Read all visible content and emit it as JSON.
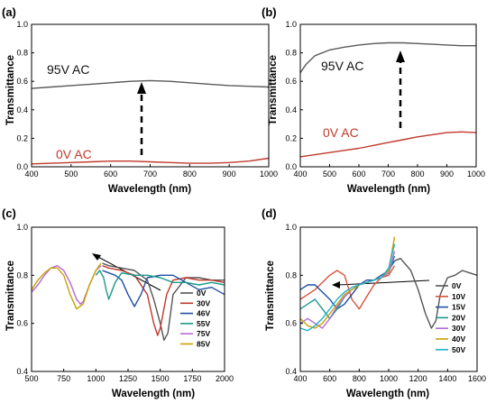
{
  "chart_data": [
    {
      "panel": "(a)",
      "type": "line",
      "xlabel": "Wavelength (nm)",
      "ylabel": "Transmittance",
      "xlim": [
        400,
        1000
      ],
      "ylim": [
        0,
        1.0
      ],
      "xticks": [
        "400",
        "500",
        "600",
        "700",
        "800",
        "900",
        "1000"
      ],
      "yticks": [
        "0.0",
        "0.2",
        "0.4",
        "0.6",
        "0.8",
        "1.0"
      ],
      "grid": false,
      "series": [
        {
          "name": "95V AC",
          "color": "#5a5a5a",
          "x": [
            400,
            450,
            500,
            550,
            600,
            650,
            700,
            750,
            800,
            850,
            900,
            950,
            1000
          ],
          "y": [
            0.55,
            0.56,
            0.57,
            0.58,
            0.59,
            0.6,
            0.605,
            0.6,
            0.59,
            0.58,
            0.57,
            0.565,
            0.56
          ]
        },
        {
          "name": "0V AC",
          "color": "#c0392b",
          "x": [
            400,
            450,
            500,
            550,
            600,
            650,
            700,
            750,
            800,
            850,
            900,
            950,
            1000
          ],
          "y": [
            0.02,
            0.025,
            0.03,
            0.035,
            0.04,
            0.04,
            0.035,
            0.03,
            0.025,
            0.025,
            0.03,
            0.04,
            0.06
          ]
        }
      ],
      "annotations": [
        "95V AC",
        "0V AC"
      ]
    },
    {
      "panel": "(b)",
      "type": "line",
      "xlabel": "Wavelength (nm)",
      "ylabel": "Transmittance",
      "xlim": [
        400,
        1000
      ],
      "ylim": [
        0,
        1.0
      ],
      "xticks": [
        "400",
        "500",
        "600",
        "700",
        "800",
        "900",
        "1000"
      ],
      "yticks": [
        "0.0",
        "0.2",
        "0.4",
        "0.6",
        "0.8",
        "1.0"
      ],
      "grid": false,
      "series": [
        {
          "name": "95V AC",
          "color": "#5a5a5a",
          "x": [
            400,
            420,
            450,
            500,
            550,
            600,
            650,
            700,
            750,
            800,
            850,
            900,
            950,
            1000
          ],
          "y": [
            0.66,
            0.72,
            0.78,
            0.82,
            0.84,
            0.855,
            0.865,
            0.87,
            0.87,
            0.865,
            0.86,
            0.855,
            0.85,
            0.85
          ]
        },
        {
          "name": "0V AC",
          "color": "#c0392b",
          "x": [
            400,
            450,
            500,
            550,
            600,
            650,
            700,
            750,
            800,
            850,
            900,
            950,
            1000
          ],
          "y": [
            0.07,
            0.085,
            0.1,
            0.115,
            0.13,
            0.15,
            0.17,
            0.19,
            0.21,
            0.225,
            0.24,
            0.245,
            0.24
          ]
        }
      ],
      "annotations": [
        "95V AC",
        "0V AC"
      ]
    },
    {
      "panel": "(c)",
      "type": "line",
      "xlabel": "Wavelength (nm)",
      "ylabel": "Transmittance",
      "xlim": [
        500,
        2000
      ],
      "ylim": [
        0.4,
        1.0
      ],
      "xticks": [
        "500",
        "750",
        "1000",
        "1250",
        "1500",
        "1750",
        "2000"
      ],
      "yticks": [
        "0.4",
        "0.6",
        "0.8",
        "1.0"
      ],
      "grid": false,
      "legend": "bottom-right",
      "series": [
        {
          "name": "0V",
          "color": "#555555",
          "x": [
            1050,
            1100,
            1200,
            1300,
            1400,
            1450,
            1500,
            1530,
            1560,
            1600,
            1700,
            1800,
            1900,
            2000
          ],
          "y": [
            0.85,
            0.84,
            0.83,
            0.82,
            0.78,
            0.7,
            0.6,
            0.53,
            0.56,
            0.72,
            0.79,
            0.79,
            0.78,
            0.78
          ]
        },
        {
          "name": "30V",
          "color": "#c0392b",
          "x": [
            1050,
            1100,
            1200,
            1300,
            1400,
            1450,
            1480,
            1500,
            1550,
            1600,
            1700,
            1800,
            1900,
            2000
          ],
          "y": [
            0.84,
            0.83,
            0.82,
            0.8,
            0.72,
            0.6,
            0.55,
            0.58,
            0.72,
            0.78,
            0.79,
            0.78,
            0.78,
            0.77
          ]
        },
        {
          "name": "46V",
          "color": "#1f4fa0",
          "x": [
            1050,
            1100,
            1150,
            1200,
            1250,
            1300,
            1350,
            1400,
            1500,
            1600,
            1700,
            1800,
            1900,
            2000
          ],
          "y": [
            0.82,
            0.81,
            0.8,
            0.78,
            0.72,
            0.67,
            0.72,
            0.79,
            0.8,
            0.8,
            0.77,
            0.74,
            0.75,
            0.72
          ]
        },
        {
          "name": "55V",
          "color": "#1a9a8a",
          "x": [
            1000,
            1030,
            1060,
            1080,
            1100,
            1150,
            1200,
            1300,
            1400,
            1500,
            1600,
            1700,
            1800,
            1900,
            2000
          ],
          "y": [
            0.8,
            0.82,
            0.79,
            0.74,
            0.7,
            0.77,
            0.81,
            0.8,
            0.8,
            0.79,
            0.77,
            0.77,
            0.76,
            0.77,
            0.76
          ]
        },
        {
          "name": "75V",
          "color": "#b36ad6",
          "x": [
            500,
            550,
            600,
            650,
            700,
            750,
            800,
            850,
            880,
            900,
            950,
            1000,
            1040
          ],
          "y": [
            0.73,
            0.76,
            0.8,
            0.83,
            0.84,
            0.82,
            0.77,
            0.7,
            0.68,
            0.69,
            0.76,
            0.82,
            0.84
          ]
        },
        {
          "name": "85V",
          "color": "#c8a200",
          "x": [
            500,
            550,
            600,
            650,
            700,
            750,
            800,
            850,
            900,
            950,
            1000,
            1040
          ],
          "y": [
            0.74,
            0.78,
            0.81,
            0.83,
            0.83,
            0.8,
            0.72,
            0.66,
            0.68,
            0.76,
            0.82,
            0.85
          ]
        }
      ],
      "legend_entries": [
        "0V",
        "30V",
        "46V",
        "55V",
        "75V",
        "85V"
      ]
    },
    {
      "panel": "(d)",
      "type": "line",
      "xlabel": "Wavelength (nm)",
      "ylabel": "Transmittance",
      "xlim": [
        400,
        1600
      ],
      "ylim": [
        0.4,
        1.0
      ],
      "xticks": [
        "400",
        "600",
        "800",
        "1000",
        "1200",
        "1400",
        "1600"
      ],
      "yticks": [
        "0.4",
        "0.6",
        "0.8",
        "1.0"
      ],
      "grid": false,
      "legend": "bottom-right",
      "series": [
        {
          "name": "0V",
          "color": "#555555",
          "x": [
            1040,
            1080,
            1150,
            1200,
            1250,
            1290,
            1320,
            1350,
            1400,
            1450,
            1500,
            1550,
            1600
          ],
          "y": [
            0.86,
            0.87,
            0.82,
            0.74,
            0.64,
            0.58,
            0.61,
            0.72,
            0.79,
            0.8,
            0.82,
            0.81,
            0.8
          ]
        },
        {
          "name": "10V",
          "color": "#d9533b",
          "x": [
            400,
            450,
            500,
            550,
            600,
            650,
            700,
            750,
            800,
            850,
            900,
            950,
            1000,
            1040
          ],
          "y": [
            0.7,
            0.72,
            0.74,
            0.77,
            0.8,
            0.82,
            0.8,
            0.7,
            0.66,
            0.71,
            0.76,
            0.79,
            0.8,
            0.84
          ]
        },
        {
          "name": "15V",
          "color": "#1f4fa0",
          "x": [
            400,
            450,
            500,
            550,
            600,
            650,
            700,
            750,
            800,
            850,
            900,
            950,
            1000,
            1040
          ],
          "y": [
            0.74,
            0.76,
            0.76,
            0.73,
            0.7,
            0.66,
            0.68,
            0.72,
            0.76,
            0.78,
            0.78,
            0.8,
            0.82,
            0.86
          ]
        },
        {
          "name": "20V",
          "color": "#1a9a8a",
          "x": [
            400,
            450,
            500,
            550,
            600,
            650,
            700,
            750,
            800,
            850,
            900,
            950,
            1000,
            1040
          ],
          "y": [
            0.66,
            0.68,
            0.7,
            0.66,
            0.62,
            0.66,
            0.71,
            0.74,
            0.76,
            0.77,
            0.78,
            0.79,
            0.81,
            0.88
          ]
        },
        {
          "name": "30V",
          "color": "#b36ad6",
          "x": [
            400,
            450,
            500,
            550,
            600,
            650,
            700,
            750,
            800,
            850,
            900,
            950,
            1000,
            1040
          ],
          "y": [
            0.6,
            0.62,
            0.6,
            0.58,
            0.62,
            0.67,
            0.71,
            0.74,
            0.76,
            0.77,
            0.78,
            0.79,
            0.81,
            0.9
          ]
        },
        {
          "name": "40V",
          "color": "#c8a200",
          "x": [
            400,
            450,
            500,
            550,
            600,
            650,
            700,
            750,
            800,
            850,
            900,
            950,
            1000,
            1040
          ],
          "y": [
            0.62,
            0.59,
            0.58,
            0.6,
            0.64,
            0.68,
            0.72,
            0.74,
            0.76,
            0.77,
            0.78,
            0.79,
            0.82,
            0.96
          ]
        },
        {
          "name": "50V",
          "color": "#1fb0d0",
          "x": [
            400,
            450,
            500,
            550,
            600,
            650,
            700,
            750,
            800,
            850,
            900,
            950,
            1000,
            1040
          ],
          "y": [
            0.58,
            0.57,
            0.59,
            0.62,
            0.66,
            0.7,
            0.73,
            0.75,
            0.76,
            0.77,
            0.78,
            0.79,
            0.83,
            0.93
          ]
        }
      ],
      "legend_entries": [
        "0V",
        "10V",
        "15V",
        "20V",
        "30V",
        "40V",
        "50V"
      ]
    }
  ]
}
